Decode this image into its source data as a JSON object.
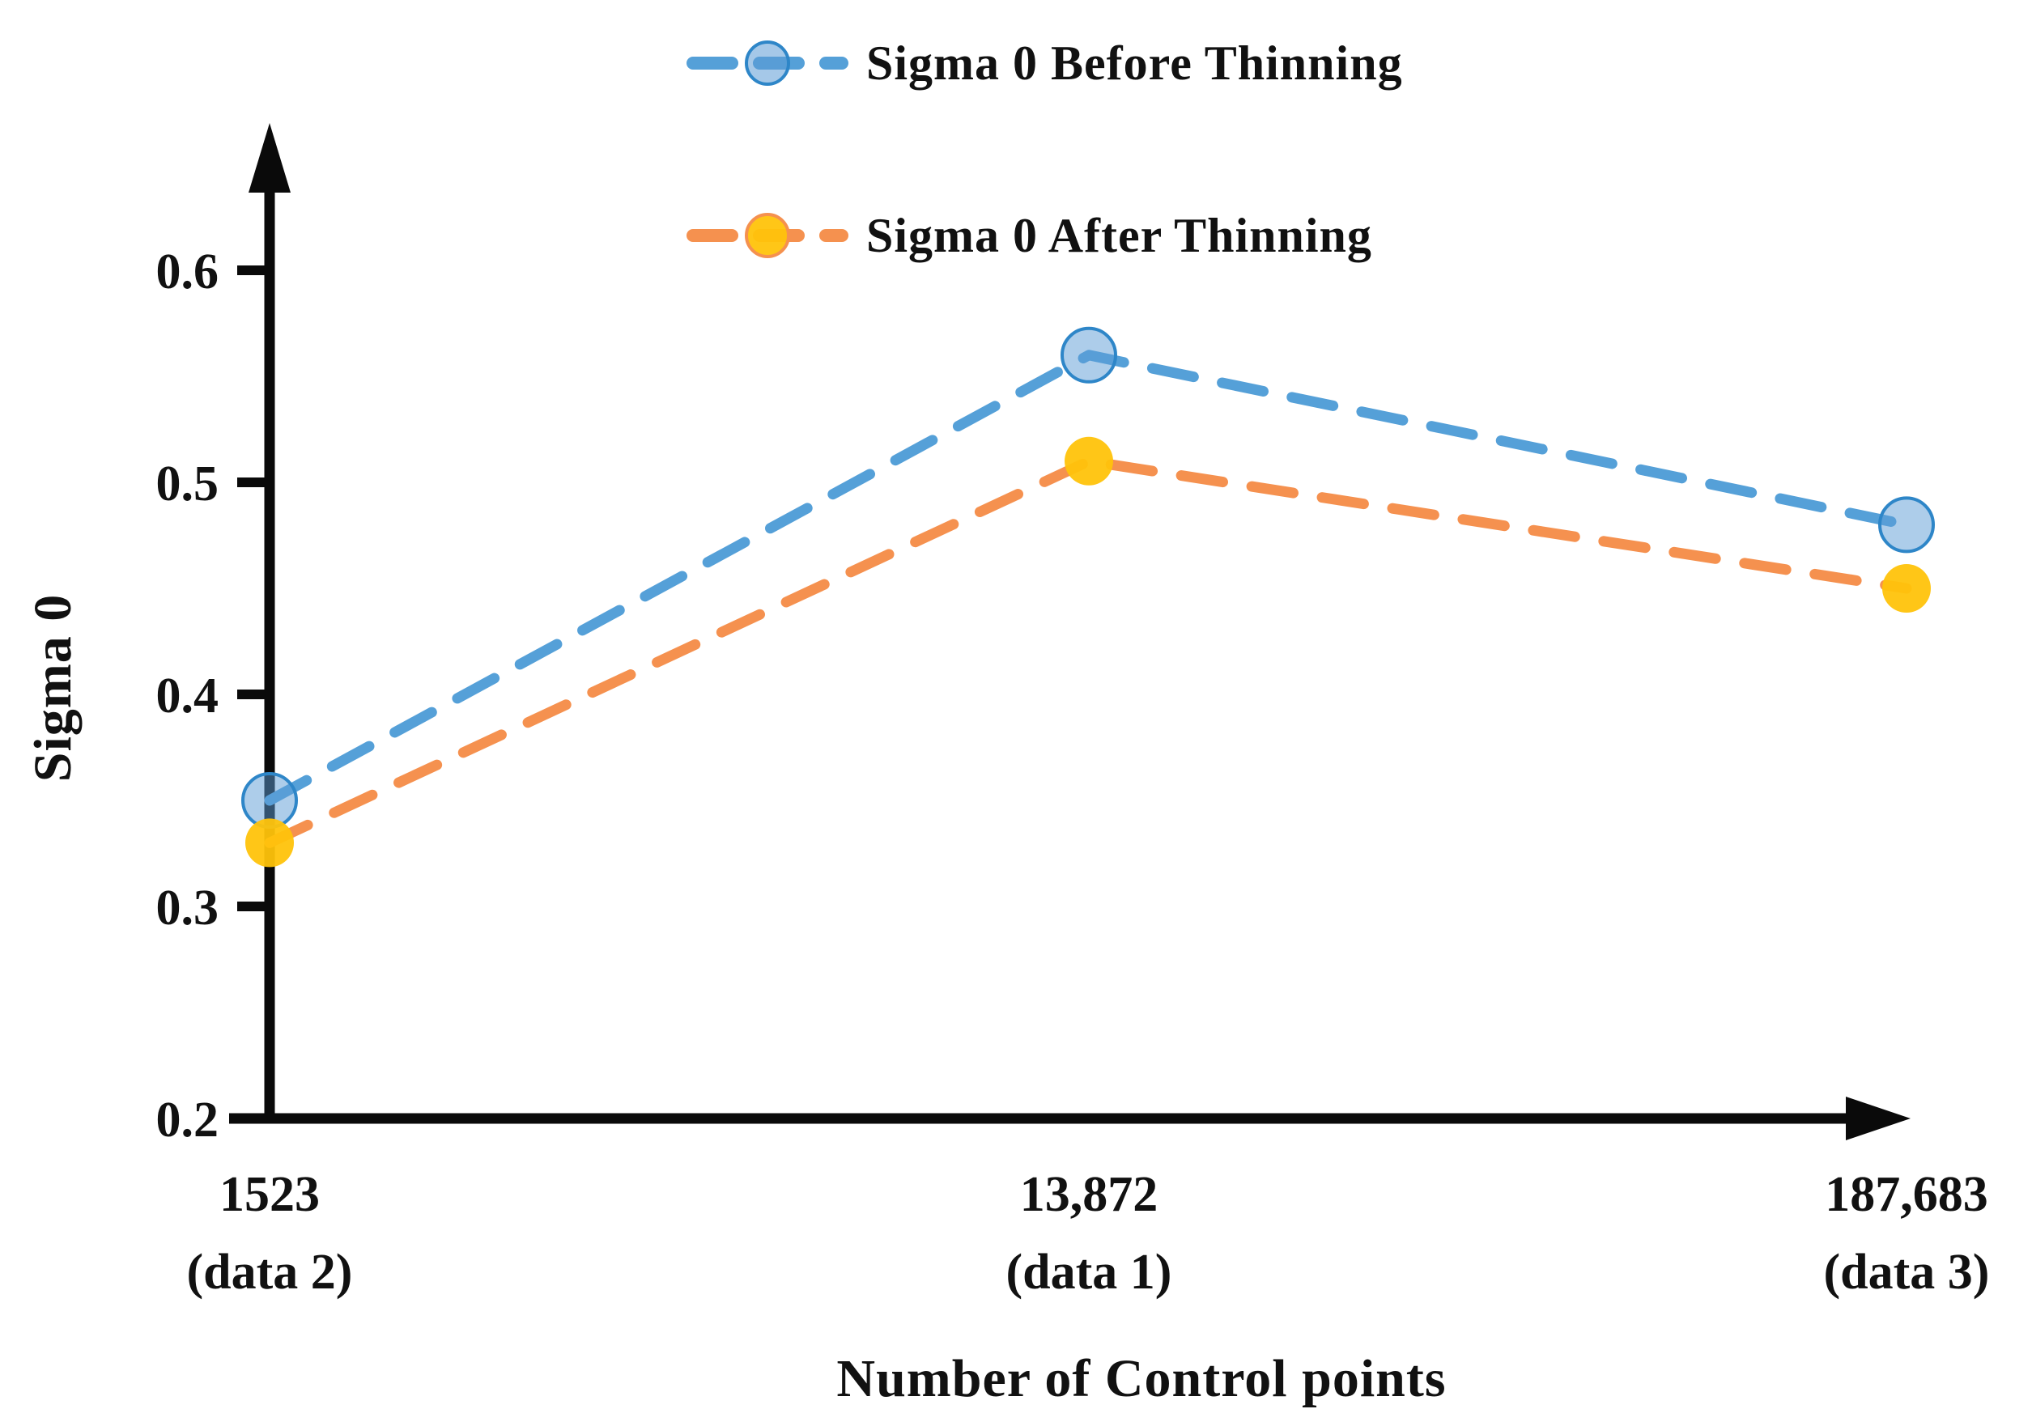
{
  "figure": {
    "background": "#ffffff",
    "text_color": "#111111",
    "axis_color": "#0a0a0a"
  },
  "legend": [
    {
      "label": "Sigma 0 Before Thinning",
      "series": "before"
    },
    {
      "label": "Sigma 0 After Thinning",
      "series": "after"
    }
  ],
  "axes": {
    "y_title": "Sigma 0",
    "x_title": "Number of Control points",
    "y_ticks": [
      "0.6",
      "0.5",
      "0.4",
      "0.3",
      "0.2"
    ],
    "x_categories": [
      [
        "1523",
        "(data 2)"
      ],
      [
        "13,872",
        "(data 1)"
      ],
      [
        "187,683",
        "(data 3)"
      ]
    ]
  },
  "chart_data": {
    "type": "line",
    "categories": [
      "1523 (data 2)",
      "13,872 (data 1)",
      "187,683 (data 3)"
    ],
    "x_values": [
      1523,
      13872,
      187683
    ],
    "series": [
      {
        "name": "Sigma 0 Before Thinning",
        "values": [
          0.35,
          0.56,
          0.48
        ],
        "line_color": "#55A0D8",
        "marker_fill": "#5B9BD5",
        "marker_stroke": "#2E86C8",
        "marker_shape": "circle",
        "line_style": "dashed"
      },
      {
        "name": "Sigma 0 After Thinning",
        "values": [
          0.33,
          0.51,
          0.45
        ],
        "line_color": "#F5914F",
        "marker_fill": "#FFC30B",
        "marker_stroke": "#F5914F",
        "marker_shape": "circle",
        "line_style": "dashed"
      }
    ],
    "title": "",
    "xlabel": "Number of Control points",
    "ylabel": "Sigma 0",
    "ylim": [
      0.2,
      0.65
    ],
    "y_tick_values": [
      0.6,
      0.5,
      0.4,
      0.3,
      0.2
    ],
    "grid": false,
    "legend_position": "top-center"
  }
}
